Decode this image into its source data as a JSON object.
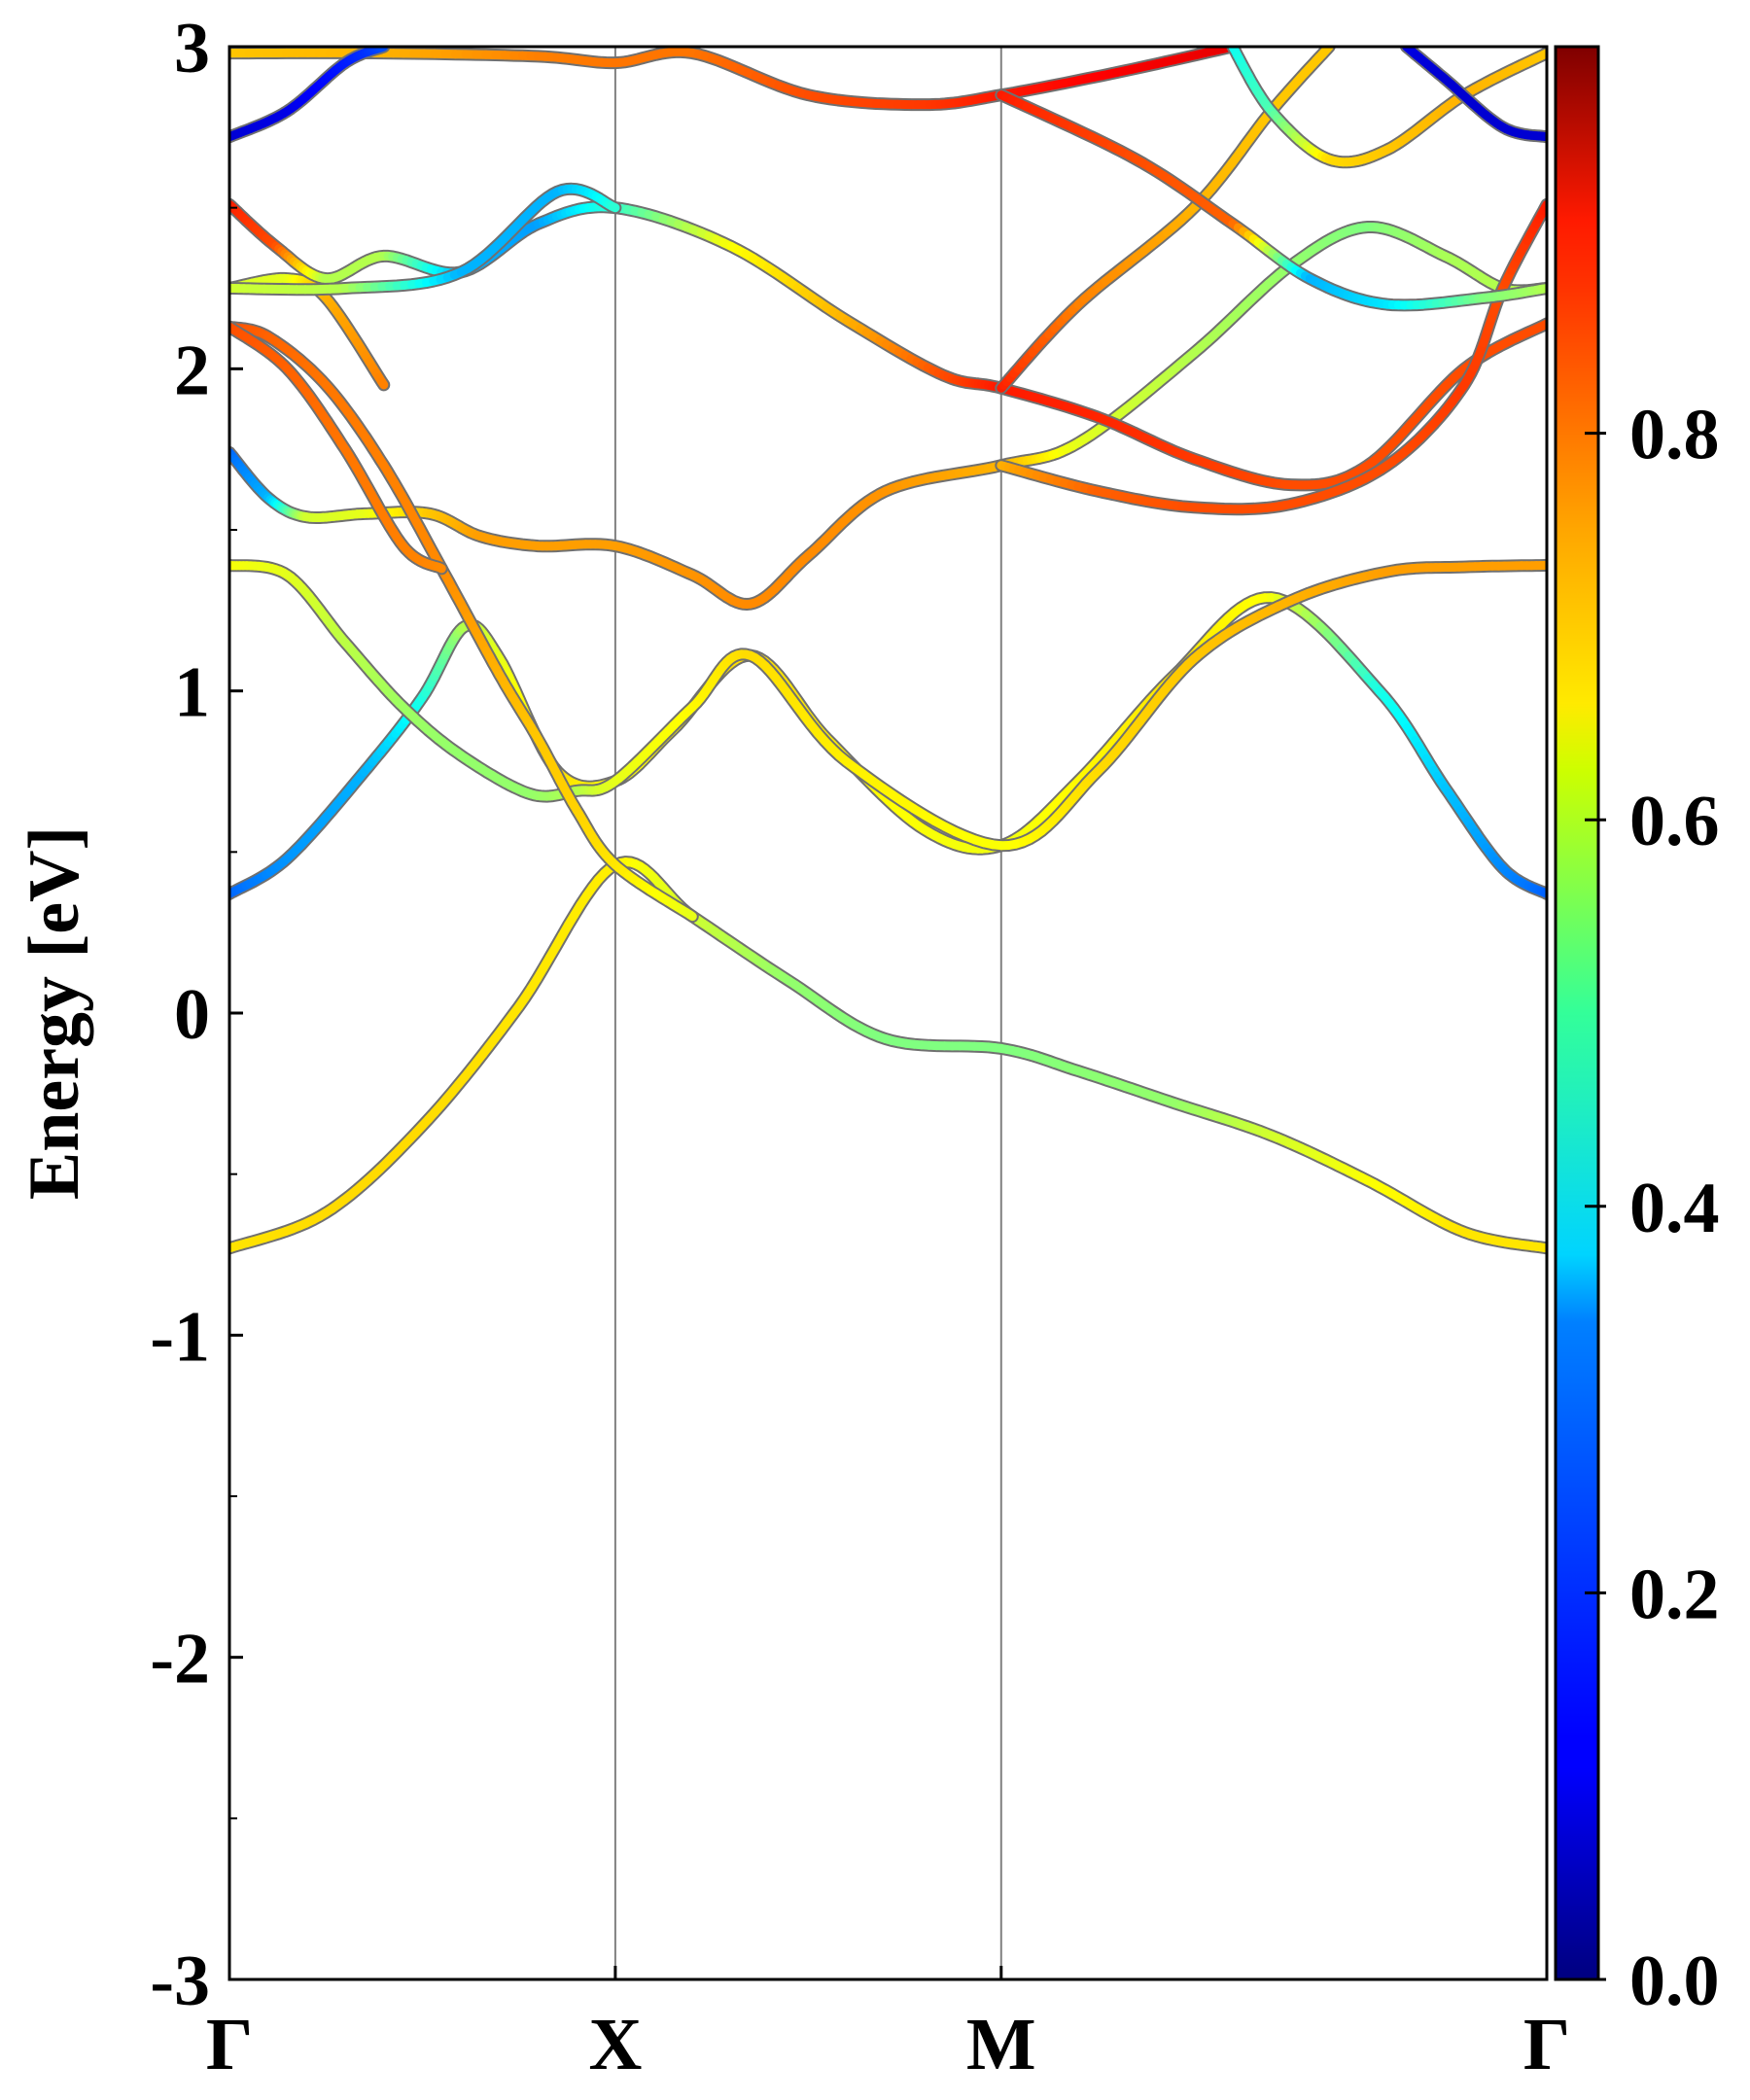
{
  "chart_data": {
    "type": "line",
    "title": "",
    "xlabel": "",
    "ylabel": "Energy [eV]",
    "ylim": [
      -3,
      3
    ],
    "yticks": [
      "-3",
      "-2",
      "-1",
      "0",
      "1",
      "2",
      "3"
    ],
    "k_points": [
      {
        "label": "Γ",
        "k": 0
      },
      {
        "label": "X",
        "k": 1
      },
      {
        "label": "M",
        "k": 2
      },
      {
        "label": "Γ",
        "k": 3.414
      }
    ],
    "colorbar": {
      "min": 0.0,
      "max": 1.0,
      "ticks": [
        "0.0",
        "0.2",
        "0.4",
        "0.6",
        "0.8"
      ],
      "tick_values": [
        0.0,
        0.2,
        0.4,
        0.6,
        0.8
      ],
      "colormap": "jet"
    },
    "series": [
      {
        "band": 1,
        "points": [
          [
            0,
            -0.73,
            0.65
          ],
          [
            0.25,
            -0.62,
            0.66
          ],
          [
            0.5,
            -0.35,
            0.66
          ],
          [
            0.75,
            0.02,
            0.65
          ],
          [
            1,
            0.46,
            0.64
          ],
          [
            1.2,
            0.3,
            0.58
          ],
          [
            1.45,
            0.1,
            0.52
          ],
          [
            1.7,
            -0.08,
            0.5
          ],
          [
            2,
            -0.11,
            0.5
          ],
          [
            2.2,
            -0.18,
            0.51
          ],
          [
            2.45,
            -0.28,
            0.52
          ],
          [
            2.7,
            -0.38,
            0.58
          ],
          [
            2.95,
            -0.52,
            0.62
          ],
          [
            3.2,
            -0.68,
            0.65
          ],
          [
            3.414,
            -0.73,
            0.65
          ]
        ]
      },
      {
        "band": 2,
        "points": [
          [
            0,
            0.37,
            0.22
          ],
          [
            0.15,
            0.48,
            0.27
          ],
          [
            0.35,
            0.75,
            0.3
          ],
          [
            0.5,
            0.98,
            0.4
          ],
          [
            0.61,
            1.2,
            0.55
          ],
          [
            0.7,
            1.1,
            0.6
          ],
          [
            0.85,
            0.75,
            0.66
          ],
          [
            1,
            0.72,
            0.62
          ],
          [
            1.15,
            0.88,
            0.63
          ],
          [
            1.35,
            1.11,
            0.66
          ],
          [
            1.55,
            0.85,
            0.64
          ],
          [
            1.8,
            0.57,
            0.62
          ],
          [
            2,
            0.52,
            0.61
          ],
          [
            2.2,
            0.72,
            0.63
          ],
          [
            2.45,
            1.05,
            0.65
          ],
          [
            2.7,
            1.29,
            0.62
          ],
          [
            2.98,
            1.0,
            0.4
          ],
          [
            3.15,
            0.7,
            0.32
          ],
          [
            3.3,
            0.45,
            0.26
          ],
          [
            3.414,
            0.37,
            0.22
          ]
        ]
      },
      {
        "band": 3,
        "points": [
          [
            0,
            1.39,
            0.62
          ],
          [
            0.15,
            1.36,
            0.6
          ],
          [
            0.3,
            1.15,
            0.56
          ],
          [
            0.45,
            0.95,
            0.53
          ],
          [
            0.6,
            0.8,
            0.52
          ],
          [
            0.78,
            0.68,
            0.52
          ],
          [
            0.9,
            0.69,
            0.55
          ],
          [
            1,
            0.72,
            0.6
          ],
          [
            1.2,
            0.95,
            0.63
          ],
          [
            1.35,
            1.11,
            0.66
          ],
          [
            1.6,
            0.78,
            0.64
          ],
          [
            2,
            0.52,
            0.62
          ],
          [
            2.25,
            0.75,
            0.66
          ],
          [
            2.5,
            1.1,
            0.68
          ],
          [
            2.75,
            1.28,
            0.7
          ],
          [
            3.0,
            1.37,
            0.72
          ],
          [
            3.2,
            1.385,
            0.72
          ],
          [
            3.414,
            1.39,
            0.72
          ]
        ]
      },
      {
        "band": 4,
        "points": [
          [
            0,
            1.74,
            0.22
          ],
          [
            0.1,
            1.6,
            0.3
          ],
          [
            0.2,
            1.54,
            0.58
          ],
          [
            0.35,
            1.55,
            0.6
          ],
          [
            0.52,
            1.55,
            0.68
          ],
          [
            0.65,
            1.48,
            0.72
          ],
          [
            0.8,
            1.45,
            0.72
          ],
          [
            1,
            1.45,
            0.72
          ],
          [
            1.2,
            1.36,
            0.73
          ],
          [
            1.35,
            1.27,
            0.74
          ],
          [
            1.5,
            1.42,
            0.74
          ],
          [
            1.7,
            1.62,
            0.73
          ],
          [
            2,
            1.7,
            0.7
          ],
          [
            2.2,
            1.77,
            0.6
          ],
          [
            2.5,
            2.05,
            0.55
          ],
          [
            2.75,
            2.32,
            0.52
          ],
          [
            2.95,
            2.44,
            0.5
          ],
          [
            3.15,
            2.35,
            0.54
          ],
          [
            3.3,
            2.25,
            0.55
          ],
          [
            3.414,
            2.25,
            0.55
          ]
        ]
      },
      {
        "band": 5,
        "points": [
          [
            0,
            2.13,
            0.8
          ],
          [
            0.1,
            2.1,
            0.78
          ],
          [
            0.25,
            1.95,
            0.76
          ],
          [
            0.4,
            1.7,
            0.75
          ],
          [
            0.55,
            1.38,
            0.74
          ],
          [
            0.7,
            1.05,
            0.7
          ],
          [
            0.8,
            0.85,
            0.68
          ],
          [
            0.9,
            0.63,
            0.67
          ],
          [
            1,
            0.46,
            0.65
          ],
          [
            1.2,
            0.3,
            0.6
          ]
        ]
      },
      {
        "band": 6,
        "points": [
          [
            0,
            2.13,
            0.8
          ],
          [
            0.15,
            2.0,
            0.78
          ],
          [
            0.3,
            1.75,
            0.76
          ],
          [
            0.45,
            1.45,
            0.75
          ],
          [
            0.55,
            1.38,
            0.74
          ]
        ]
      },
      {
        "band": 7,
        "points": [
          [
            0,
            2.25,
            0.58
          ],
          [
            0.15,
            2.28,
            0.6
          ],
          [
            0.25,
            2.22,
            0.7
          ],
          [
            0.4,
            1.95,
            0.75
          ]
        ]
      },
      {
        "band": 8,
        "points": [
          [
            0,
            2.51,
            0.85
          ],
          [
            0.12,
            2.38,
            0.8
          ],
          [
            0.25,
            2.28,
            0.55
          ],
          [
            0.4,
            2.35,
            0.55
          ],
          [
            0.6,
            2.3,
            0.3
          ],
          [
            0.8,
            2.45,
            0.28
          ],
          [
            1,
            2.5,
            0.42
          ],
          [
            1.3,
            2.38,
            0.62
          ],
          [
            1.6,
            2.15,
            0.7
          ],
          [
            1.85,
            1.98,
            0.8
          ],
          [
            2,
            1.94,
            0.85
          ],
          [
            2.25,
            1.85,
            0.84
          ],
          [
            2.5,
            1.72,
            0.82
          ],
          [
            2.75,
            1.64,
            0.8
          ],
          [
            2.95,
            1.7,
            0.8
          ],
          [
            3.2,
            2.0,
            0.8
          ],
          [
            3.414,
            2.14,
            0.8
          ]
        ]
      },
      {
        "band": 9,
        "points": [
          [
            0,
            2.25,
            0.58
          ],
          [
            0.3,
            2.25,
            0.55
          ],
          [
            0.6,
            2.3,
            0.3
          ],
          [
            0.85,
            2.55,
            0.3
          ],
          [
            1,
            2.5,
            0.42
          ]
        ]
      },
      {
        "band": 10,
        "points": [
          [
            2,
            1.7,
            0.7
          ],
          [
            2.25,
            1.62,
            0.78
          ],
          [
            2.5,
            1.57,
            0.8
          ],
          [
            2.75,
            1.58,
            0.8
          ],
          [
            3.0,
            1.7,
            0.8
          ],
          [
            3.2,
            1.95,
            0.82
          ],
          [
            3.3,
            2.25,
            0.8
          ],
          [
            3.414,
            2.51,
            0.85
          ]
        ]
      },
      {
        "band": 11,
        "points": [
          [
            2,
            1.94,
            0.85
          ],
          [
            2.2,
            2.2,
            0.75
          ],
          [
            2.5,
            2.5,
            0.7
          ],
          [
            2.7,
            2.8,
            0.68
          ],
          [
            2.85,
            3.0,
            0.68
          ]
        ]
      },
      {
        "band": 12,
        "points": [
          [
            0,
            2.98,
            0.68
          ],
          [
            0.4,
            2.98,
            0.7
          ],
          [
            0.8,
            2.97,
            0.75
          ],
          [
            1,
            2.95,
            0.76
          ],
          [
            1.2,
            2.98,
            0.76
          ],
          [
            1.5,
            2.85,
            0.8
          ],
          [
            1.8,
            2.82,
            0.82
          ],
          [
            2,
            2.85,
            0.85
          ],
          [
            2.3,
            2.92,
            0.88
          ],
          [
            2.6,
            3.0,
            0.9
          ]
        ]
      },
      {
        "band": 13,
        "points": [
          [
            2,
            2.85,
            0.85
          ],
          [
            2.35,
            2.65,
            0.8
          ],
          [
            2.6,
            2.45,
            0.78
          ],
          [
            2.8,
            2.28,
            0.3
          ],
          [
            3.0,
            2.2,
            0.35
          ],
          [
            3.25,
            2.22,
            0.5
          ],
          [
            3.414,
            2.25,
            0.55
          ]
        ]
      },
      {
        "band": 14,
        "points": [
          [
            2.6,
            3.0,
            0.38
          ],
          [
            2.7,
            2.8,
            0.45
          ],
          [
            2.85,
            2.65,
            0.66
          ],
          [
            3.0,
            2.68,
            0.68
          ],
          [
            3.2,
            2.85,
            0.7
          ],
          [
            3.414,
            2.98,
            0.68
          ]
        ]
      },
      {
        "band": 15,
        "points": [
          [
            0,
            2.72,
            0.08
          ],
          [
            0.15,
            2.8,
            0.1
          ],
          [
            0.3,
            2.95,
            0.15
          ],
          [
            0.4,
            3.0,
            0.2
          ]
        ]
      },
      {
        "band": 16,
        "points": [
          [
            3.05,
            3.0,
            0.1
          ],
          [
            3.15,
            2.9,
            0.08
          ],
          [
            3.3,
            2.75,
            0.08
          ],
          [
            3.414,
            2.72,
            0.08
          ]
        ]
      }
    ]
  }
}
